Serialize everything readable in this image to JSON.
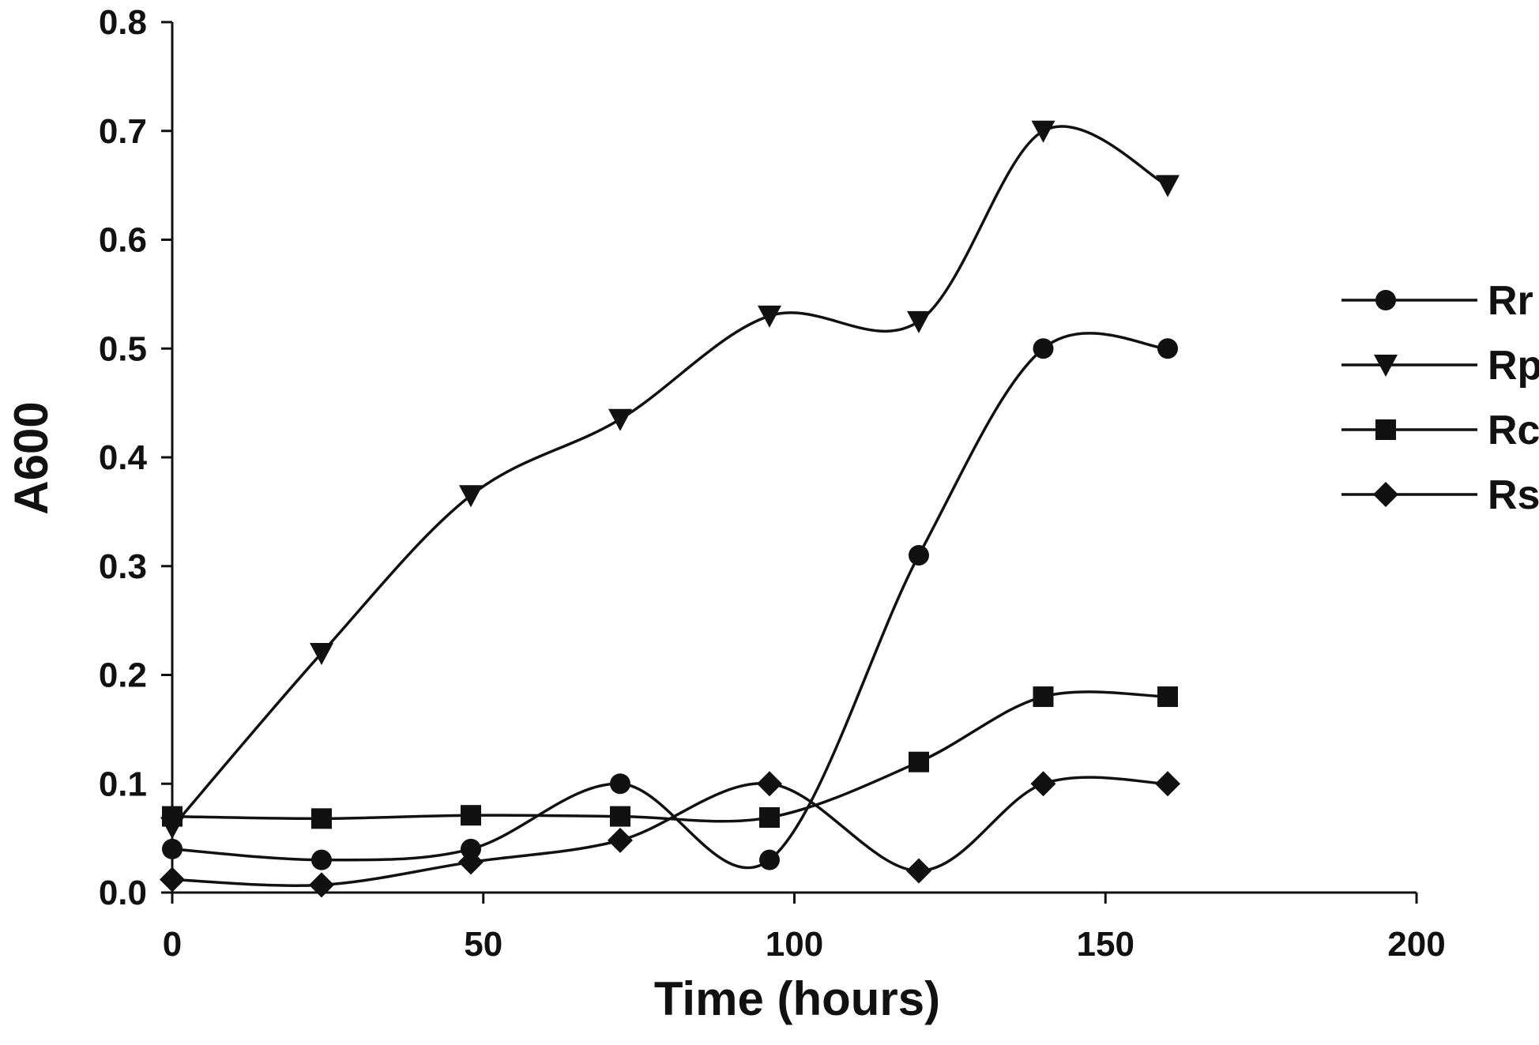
{
  "chart_data": {
    "type": "line",
    "title": "",
    "xlabel": "Time (hours)",
    "ylabel": "A600",
    "xlim": [
      0,
      200
    ],
    "ylim": [
      0,
      0.8
    ],
    "xticks": [
      0,
      50,
      100,
      150,
      200
    ],
    "yticks": [
      0.0,
      0.1,
      0.2,
      0.3,
      0.4,
      0.5,
      0.6,
      0.7,
      0.8
    ],
    "xtick_labels": [
      "0",
      "50",
      "100",
      "150",
      "200"
    ],
    "ytick_labels": [
      "0.0",
      "0.1",
      "0.2",
      "0.3",
      "0.4",
      "0.5",
      "0.6",
      "0.7",
      "0.8"
    ],
    "grid": false,
    "legend_position": "right",
    "line_color": "#111111",
    "smooth": true,
    "x": [
      0,
      24,
      48,
      72,
      96,
      120,
      140,
      160
    ],
    "series": [
      {
        "name": "Rr",
        "marker": "circle",
        "values": [
          0.04,
          0.03,
          0.04,
          0.1,
          0.03,
          0.31,
          0.5,
          0.5
        ]
      },
      {
        "name": "Rp",
        "marker": "triangle-down",
        "values": [
          0.06,
          0.22,
          0.365,
          0.435,
          0.53,
          0.525,
          0.7,
          0.65
        ]
      },
      {
        "name": "Rc",
        "marker": "square",
        "values": [
          0.07,
          0.068,
          0.071,
          0.07,
          0.069,
          0.12,
          0.18,
          0.18
        ]
      },
      {
        "name": "Rs",
        "marker": "diamond",
        "values": [
          0.012,
          0.007,
          0.028,
          0.048,
          0.1,
          0.02,
          0.1,
          0.1
        ]
      }
    ]
  }
}
